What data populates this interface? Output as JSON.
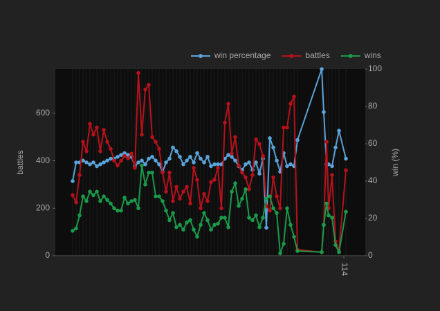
{
  "chart_data": {
    "type": "line",
    "y_label": "battles",
    "y2_label": "win (%)",
    "x": [
      25,
      30,
      35,
      40,
      45,
      50,
      55,
      60,
      65,
      70,
      75,
      80,
      85,
      90,
      95,
      100,
      105,
      110,
      115,
      120,
      125,
      130,
      135,
      140,
      145,
      150,
      155,
      160,
      165,
      170,
      175,
      180,
      185,
      190,
      195,
      200,
      205,
      210,
      215,
      220,
      225,
      230,
      235,
      240,
      245,
      250,
      255,
      260,
      265,
      270,
      275,
      280,
      285,
      290,
      295,
      300,
      305,
      310,
      315,
      320,
      325,
      330,
      335,
      340,
      345,
      350,
      385,
      388,
      392,
      395,
      400,
      405,
      410,
      420
    ],
    "xlim": [
      0,
      448
    ],
    "xticks": [
      {
        "value": 417,
        "label": "114"
      }
    ],
    "ylim": [
      0,
      786
    ],
    "yticks": [
      0,
      200,
      400,
      600
    ],
    "y2lim": [
      0,
      100
    ],
    "y2ticks": [
      0,
      20,
      40,
      60,
      80,
      100
    ],
    "legend": "top-right",
    "series": [
      {
        "name": "win percentage",
        "color": "#5ba3d9",
        "axis": "y2",
        "values": [
          40,
          50,
          50,
          51,
          50,
          49,
          50,
          48,
          49,
          50,
          51,
          52,
          52,
          53,
          54,
          55,
          54,
          53,
          48,
          50,
          51,
          49,
          52,
          53,
          51,
          49,
          45,
          50,
          52,
          58,
          56,
          53,
          49,
          51,
          53,
          50,
          55,
          52,
          50,
          53,
          48,
          49,
          49,
          49,
          52,
          54,
          53,
          51,
          48,
          46,
          49,
          50,
          46,
          50,
          44,
          52,
          15,
          63,
          58,
          51,
          45,
          55,
          48,
          49,
          48,
          62,
          100,
          77,
          49,
          49,
          48,
          58,
          67,
          52
        ]
      },
      {
        "name": "battles",
        "color": "#b5121b",
        "values": [
          255,
          225,
          340,
          480,
          440,
          555,
          510,
          540,
          440,
          530,
          480,
          450,
          400,
          380,
          400,
          420,
          410,
          430,
          370,
          770,
          510,
          700,
          720,
          500,
          480,
          450,
          350,
          270,
          350,
          230,
          290,
          240,
          270,
          290,
          220,
          370,
          320,
          200,
          260,
          230,
          310,
          320,
          370,
          200,
          560,
          640,
          430,
          500,
          380,
          350,
          330,
          280,
          340,
          490,
          470,
          420,
          210,
          190,
          330,
          250,
          200,
          540,
          540,
          640,
          670,
          25,
          15,
          130,
          480,
          200,
          340,
          60,
          20,
          360
        ]
      },
      {
        "name": "wins",
        "color": "#1a9a4a",
        "values": [
          105,
          115,
          170,
          250,
          230,
          270,
          255,
          270,
          230,
          250,
          235,
          220,
          200,
          190,
          190,
          245,
          220,
          230,
          235,
          200,
          380,
          300,
          350,
          350,
          250,
          250,
          230,
          190,
          150,
          180,
          120,
          130,
          110,
          140,
          150,
          110,
          80,
          130,
          180,
          150,
          110,
          130,
          135,
          160,
          160,
          120,
          270,
          305,
          210,
          240,
          280,
          160,
          150,
          170,
          120,
          160,
          240,
          250,
          200,
          180,
          10,
          50,
          200,
          130,
          80,
          20,
          15,
          130,
          220,
          170,
          160,
          45,
          15,
          185
        ]
      }
    ]
  }
}
